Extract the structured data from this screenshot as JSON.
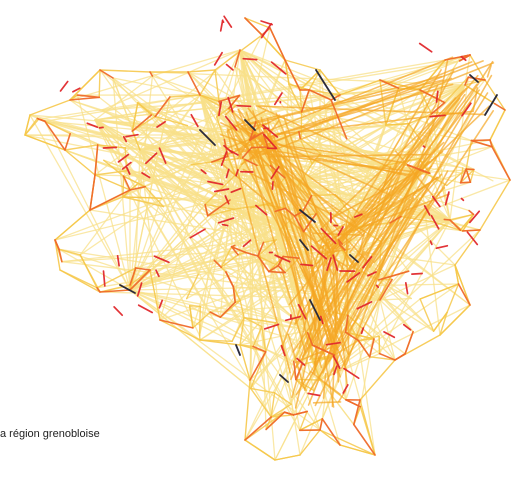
{
  "caption": "a région grenobloise",
  "colors": {
    "background": "#ffffff",
    "flow_very_low": "#f8e08a",
    "flow_low": "#f6c84a",
    "flow_medium": "#f5a623",
    "flow_high": "#ef6a2a",
    "flow_very_high": "#e0282c",
    "flow_extreme": "#2a2a3a"
  },
  "legend_classes": [
    "very_low",
    "low",
    "medium",
    "high",
    "very_high",
    "extreme"
  ]
}
